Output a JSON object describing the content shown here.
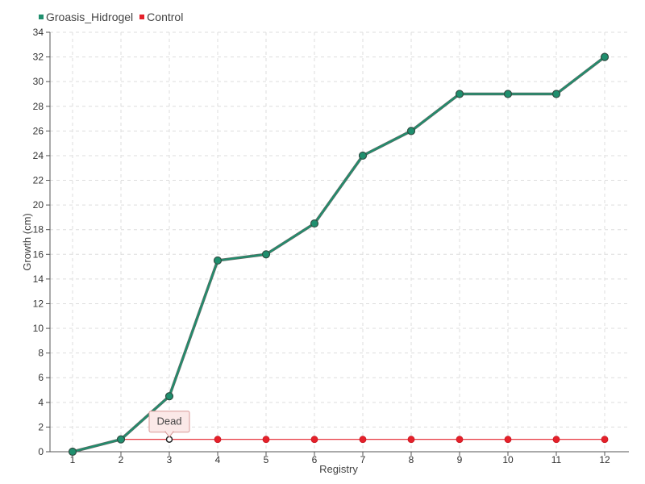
{
  "chart_data": {
    "type": "line",
    "xlabel": "Registry",
    "ylabel": "Growth (cm)",
    "x": [
      "1",
      "2",
      "3",
      "4",
      "5",
      "6",
      "7",
      "8",
      "9",
      "10",
      "11",
      "12"
    ],
    "ylim": [
      0,
      34
    ],
    "yticks": [
      0,
      2,
      4,
      6,
      8,
      10,
      12,
      14,
      16,
      18,
      20,
      22,
      24,
      26,
      28,
      30,
      32,
      34
    ],
    "grid": true,
    "legend_position": "top-left",
    "series": [
      {
        "name": "Groasis_Hidrogel",
        "color": "#1f8f6e",
        "values": [
          0,
          1,
          4.5,
          15.5,
          16,
          18.5,
          24,
          26,
          29,
          29,
          29,
          32
        ]
      },
      {
        "name": "Control",
        "color": "#e5202a",
        "values": [
          0,
          1,
          1,
          1,
          1,
          1,
          1,
          1,
          1,
          1,
          1,
          1
        ]
      }
    ],
    "annotation": {
      "text": "Dead",
      "series": "Control",
      "x": "3",
      "y": 1
    }
  }
}
